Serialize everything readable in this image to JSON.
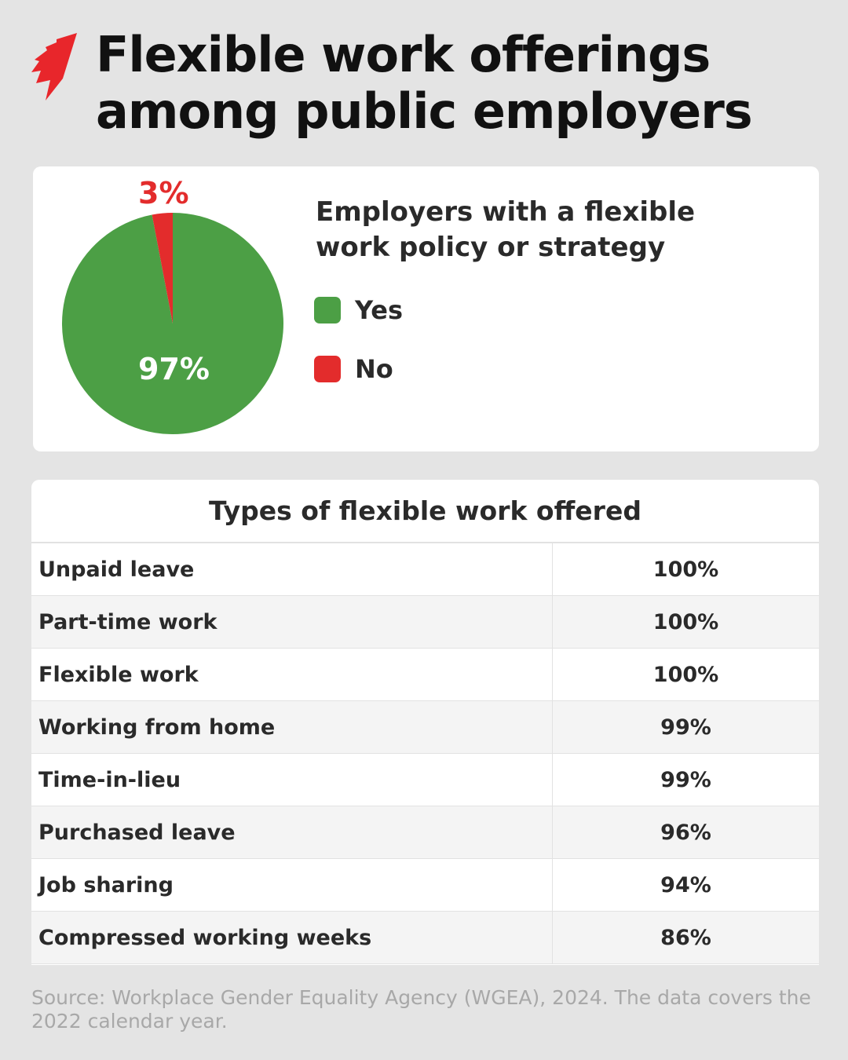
{
  "header": {
    "title_line1": "Flexible work offerings",
    "title_line2": "among public employers",
    "logo": "red-flame-logo"
  },
  "colors": {
    "yes": "#4c9f45",
    "no": "#e32c2c"
  },
  "chart_data": [
    {
      "type": "pie",
      "title": "Employers with a flexible work policy or strategy",
      "slices": [
        {
          "name": "Yes",
          "value": 97,
          "label": "97%"
        },
        {
          "name": "No",
          "value": 3,
          "label": "3%"
        }
      ],
      "legend": [
        "Yes",
        "No"
      ],
      "legend_placement": "right"
    },
    {
      "type": "table",
      "title": "Types of flexible work offered",
      "rows": [
        {
          "label": "Unpaid leave",
          "value": "100%"
        },
        {
          "label": "Part-time work",
          "value": "100%"
        },
        {
          "label": "Flexible work",
          "value": "100%"
        },
        {
          "label": "Working from home",
          "value": "99%"
        },
        {
          "label": "Time-in-lieu",
          "value": "99%"
        },
        {
          "label": "Purchased leave",
          "value": "96%"
        },
        {
          "label": "Job sharing",
          "value": "94%"
        },
        {
          "label": "Compressed working weeks",
          "value": "86%"
        }
      ]
    }
  ],
  "source": "Source: Workplace Gender Equality Agency (WGEA), 2024. The data covers the 2022 calendar year."
}
